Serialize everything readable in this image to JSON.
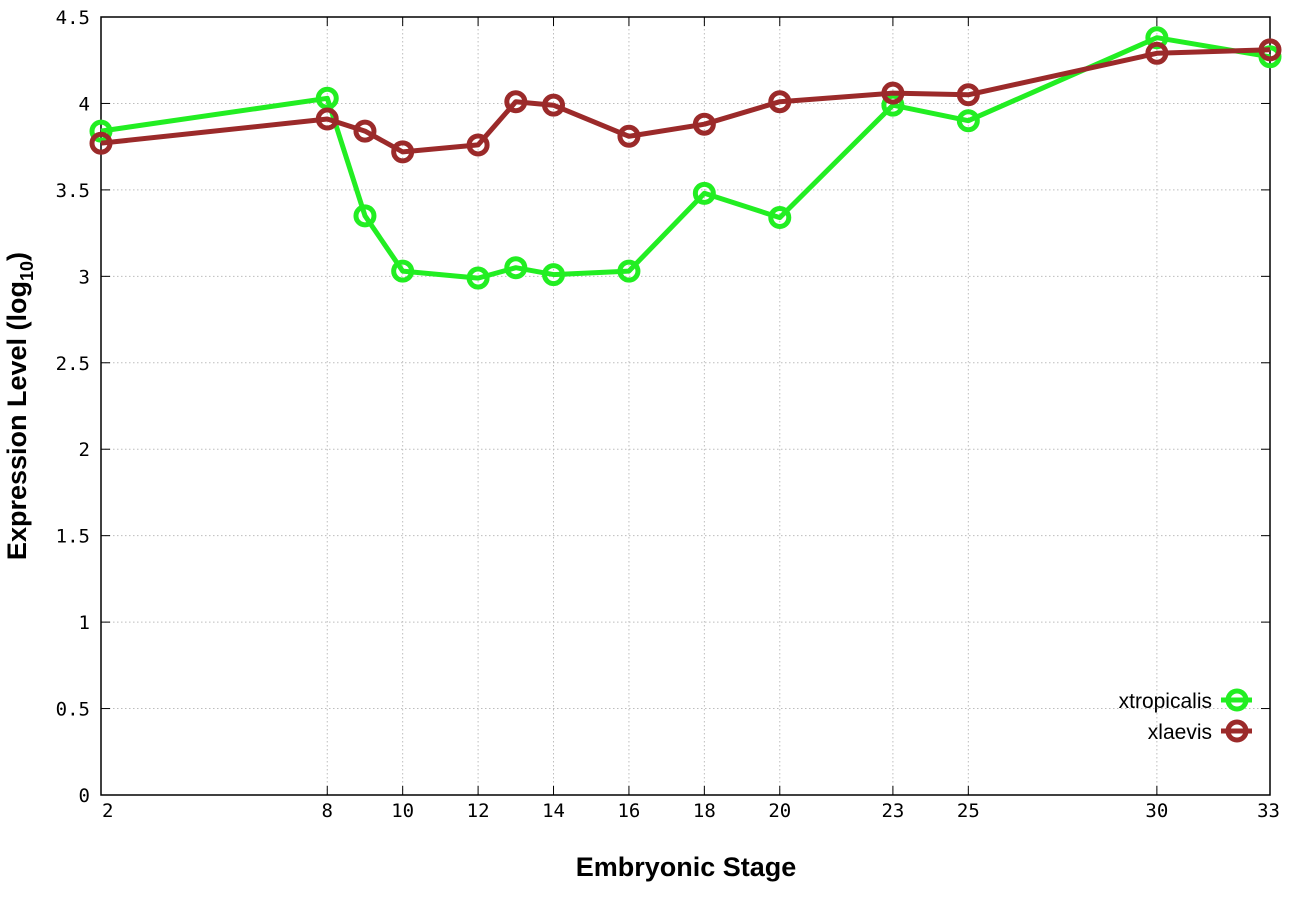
{
  "chart_data": {
    "type": "line",
    "xlabel": "Embryonic Stage",
    "ylabel_main": "Expression Level (log",
    "ylabel_sub": "10",
    "ylabel_close": ")",
    "x_ticks": [
      2,
      8,
      10,
      12,
      14,
      16,
      18,
      20,
      23,
      25,
      30,
      33
    ],
    "y_ticks": [
      "0",
      "0.5",
      "1",
      "1.5",
      "2",
      "2.5",
      "3",
      "3.5",
      "4",
      "4.5"
    ],
    "ylim": [
      0,
      4.5
    ],
    "grid": true,
    "legend_position": "bottom-right",
    "series": [
      {
        "name": "xtropicalis",
        "color": "#22ee22",
        "x": [
          2,
          8,
          9,
          10,
          12,
          13,
          14,
          16,
          18,
          20,
          23,
          25,
          30,
          33
        ],
        "y": [
          3.84,
          4.03,
          3.35,
          3.03,
          2.99,
          3.05,
          3.01,
          3.03,
          3.48,
          3.34,
          3.99,
          3.9,
          4.38,
          4.27
        ]
      },
      {
        "name": "xlaevis",
        "color": "#9b2a2a",
        "x": [
          2,
          8,
          9,
          10,
          12,
          13,
          14,
          16,
          18,
          20,
          23,
          25,
          30,
          33
        ],
        "y": [
          3.77,
          3.91,
          3.84,
          3.72,
          3.76,
          4.01,
          3.99,
          3.81,
          3.88,
          4.01,
          4.06,
          4.05,
          4.29,
          4.31
        ]
      }
    ]
  }
}
